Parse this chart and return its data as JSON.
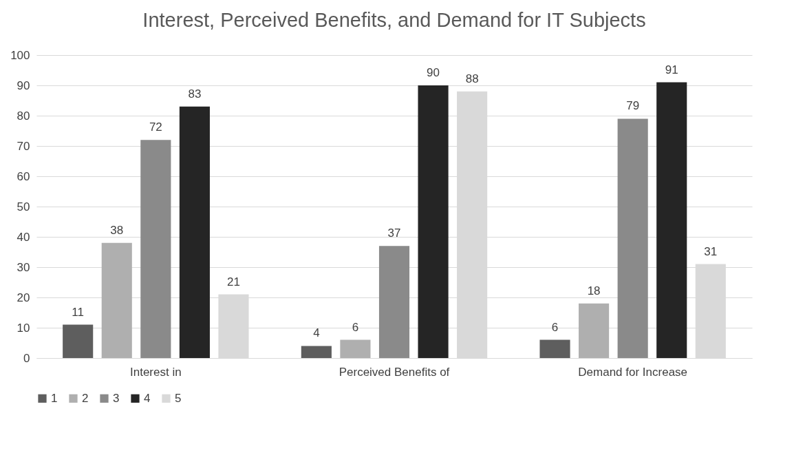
{
  "chart_data": {
    "type": "bar",
    "title": "Interest, Perceived Benefits, and Demand for IT Subjects",
    "categories": [
      "Interest in",
      "Perceived Benefits of",
      "Demand for Increase"
    ],
    "series": [
      {
        "name": "1",
        "color": "#5e5e5e",
        "values": [
          11,
          4,
          6
        ]
      },
      {
        "name": "2",
        "color": "#afafaf",
        "values": [
          38,
          6,
          18
        ]
      },
      {
        "name": "3",
        "color": "#8a8a8a",
        "values": [
          72,
          37,
          79
        ]
      },
      {
        "name": "4",
        "color": "#252525",
        "values": [
          83,
          90,
          91
        ]
      },
      {
        "name": "5",
        "color": "#d9d9d9",
        "values": [
          21,
          88,
          31
        ]
      }
    ],
    "ylim": [
      0,
      100
    ],
    "yticks": [
      0,
      10,
      20,
      30,
      40,
      50,
      60,
      70,
      80,
      90,
      100
    ],
    "grid": "y",
    "legend": "bottom",
    "data_labels": true
  }
}
